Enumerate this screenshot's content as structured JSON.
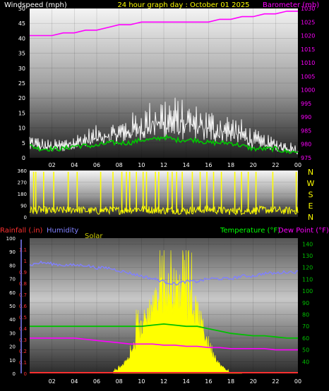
{
  "header": {
    "wind_title": "Windspeed (mph)",
    "date_title": "24 hour graph day : October 01 2025",
    "baro_title": "Barometer (mb)"
  },
  "bottom_header": {
    "rain_label": "Rainfall (.in)",
    "humidity_label": "Humidity",
    "solar_label": "Solar",
    "temp_label": "Temperature (°F)",
    "dew_label": "Dew Point (°F)"
  },
  "compass": [
    "N",
    "W",
    "S",
    "E",
    "N"
  ],
  "colors": {
    "wind": "#ffffff",
    "wind_avg": "#00c800",
    "barometer": "#ff00ff",
    "direction": "#ffff00",
    "rain": "#ff3030",
    "humidity": "#8080ff",
    "solar": "#ffff00",
    "temperature": "#00c000",
    "dewpoint": "#ff00ff",
    "title": "#ffff00"
  },
  "chart_data": [
    {
      "type": "line",
      "name": "wind-barometer",
      "x_ticks": [
        "02",
        "04",
        "06",
        "08",
        "10",
        "12",
        "14",
        "16",
        "18",
        "20",
        "22",
        "00"
      ],
      "x": [
        0,
        1,
        2,
        3,
        4,
        5,
        6,
        7,
        8,
        9,
        10,
        11,
        12,
        13,
        14,
        15,
        16,
        17,
        18,
        19,
        20,
        21,
        22,
        23,
        24
      ],
      "ylim": [
        0,
        50
      ],
      "y_ticks": [
        "0",
        "5",
        "10",
        "15",
        "20",
        "25",
        "30",
        "35",
        "40",
        "45",
        "50"
      ],
      "y2lim": [
        975,
        1030
      ],
      "y2_ticks": [
        "975",
        "980",
        "985",
        "990",
        "995",
        "1000",
        "1005",
        "1010",
        "1015",
        "1020",
        "1025",
        "1030"
      ],
      "series": [
        {
          "role": "wind_gust_max",
          "values": [
            9,
            7,
            6,
            7,
            8,
            10,
            11,
            12,
            13,
            15,
            17,
            20,
            22,
            21,
            19,
            18,
            17,
            16,
            15,
            13,
            10,
            8,
            7,
            6,
            5
          ]
        },
        {
          "role": "wind_gust_min",
          "values": [
            2,
            2,
            2,
            2,
            3,
            3,
            4,
            4,
            5,
            5,
            6,
            6,
            6,
            6,
            6,
            6,
            5,
            5,
            5,
            4,
            3,
            3,
            2,
            2,
            1
          ]
        },
        {
          "role": "wind_avg",
          "values": [
            4,
            3,
            3,
            3,
            4,
            4,
            4,
            5,
            5,
            5,
            6,
            6,
            7,
            6,
            6,
            6,
            5,
            5,
            5,
            4,
            3,
            3,
            3,
            2,
            2
          ]
        },
        {
          "role": "barometer",
          "values": [
            1020,
            1020,
            1020,
            1021,
            1021,
            1022,
            1022,
            1023,
            1024,
            1024,
            1025,
            1025,
            1025,
            1025,
            1025,
            1025,
            1025,
            1026,
            1026,
            1027,
            1027,
            1028,
            1028,
            1029,
            1029
          ]
        }
      ]
    },
    {
      "type": "line",
      "name": "wind-direction",
      "x_ticks": [
        "02",
        "04",
        "06",
        "08",
        "10",
        "12",
        "14",
        "16",
        "18",
        "20",
        "22",
        "00"
      ],
      "ylim": [
        0,
        360
      ],
      "y_ticks": [
        "0",
        "90",
        "180",
        "270",
        "360"
      ],
      "series": [
        {
          "role": "direction_base",
          "values": [
            50,
            55,
            48,
            52,
            60,
            50,
            45,
            55,
            50,
            58,
            62,
            55,
            50,
            52,
            48,
            55,
            60,
            50,
            45,
            48,
            50,
            55,
            52,
            48,
            50
          ]
        },
        {
          "role": "direction_spikes_hour",
          "values": [
            0.3,
            0.5,
            1.2,
            2.1,
            3.4,
            4.2,
            6.3,
            7.4,
            8.2,
            8.6,
            8.9,
            9.5,
            10.1,
            10.4,
            11.2,
            11.5,
            12.3,
            12.7,
            13.1,
            13.6,
            14.5,
            15.2,
            15.8,
            16.4,
            17.1,
            18.3,
            18.9,
            19.5,
            20.2,
            21.7,
            23.8
          ]
        }
      ]
    },
    {
      "type": "area",
      "name": "rain-humidity-solar-temp",
      "x_ticks": [
        "02",
        "04",
        "06",
        "08",
        "10",
        "12",
        "14",
        "16",
        "18",
        "20",
        "22",
        "00"
      ],
      "x": [
        0,
        1,
        2,
        3,
        4,
        5,
        6,
        7,
        8,
        9,
        10,
        11,
        12,
        13,
        14,
        15,
        16,
        17,
        18,
        19,
        20,
        21,
        22,
        23,
        24
      ],
      "rain_ylim": [
        0,
        1.2
      ],
      "rain_ticks": [
        "0",
        "0.1",
        "0.2",
        "0.3",
        "0.4",
        "0.5",
        "0.6",
        "0.7",
        "0.8",
        "0.9",
        "1",
        "1.1"
      ],
      "humidity_ylim": [
        0,
        100
      ],
      "humidity_ticks": [
        "0",
        "10",
        "20",
        "30",
        "40",
        "50",
        "60",
        "70",
        "80",
        "90",
        "100"
      ],
      "temp_ylim": [
        30,
        145
      ],
      "temp_ticks": [
        "40",
        "50",
        "60",
        "70",
        "80",
        "90",
        "100",
        "110",
        "120",
        "130",
        "140"
      ],
      "series": [
        {
          "role": "humidity",
          "values": [
            80,
            82,
            81,
            80,
            80,
            80,
            78,
            78,
            76,
            74,
            72,
            70,
            68,
            66,
            68,
            68,
            70,
            70,
            70,
            72,
            72,
            74,
            74,
            75,
            75
          ]
        },
        {
          "role": "temperature",
          "values": [
            70,
            70,
            70,
            70,
            70,
            70,
            70,
            70,
            70,
            70,
            70,
            71,
            72,
            71,
            70,
            70,
            68,
            66,
            64,
            63,
            62,
            62,
            61,
            60,
            60
          ]
        },
        {
          "role": "dewpoint",
          "values": [
            60,
            60,
            60,
            60,
            60,
            59,
            58,
            57,
            56,
            55,
            55,
            55,
            54,
            54,
            53,
            53,
            52,
            52,
            51,
            51,
            51,
            51,
            50,
            50,
            50
          ]
        },
        {
          "role": "solar",
          "values": [
            0,
            0,
            0,
            0,
            0,
            0,
            0,
            0,
            5,
            20,
            55,
            80,
            95,
            100,
            90,
            70,
            35,
            10,
            0,
            0,
            0,
            0,
            0,
            0,
            0
          ]
        },
        {
          "role": "rainfall",
          "values": [
            0,
            0,
            0,
            0,
            0,
            0,
            0,
            0,
            0,
            0,
            0,
            0,
            0,
            0,
            0,
            0,
            0,
            0,
            0,
            0,
            0,
            0,
            0,
            0,
            0
          ]
        }
      ]
    }
  ]
}
